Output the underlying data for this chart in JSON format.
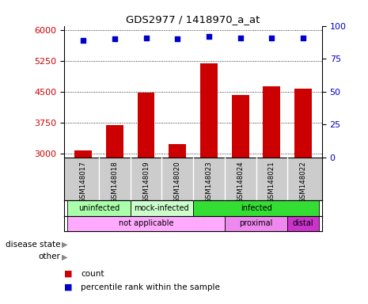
{
  "title": "GDS2977 / 1418970_a_at",
  "samples": [
    "GSM148017",
    "GSM148018",
    "GSM148019",
    "GSM148020",
    "GSM148023",
    "GSM148024",
    "GSM148021",
    "GSM148022"
  ],
  "counts": [
    3080,
    3680,
    4480,
    3220,
    5180,
    4420,
    4640,
    4580
  ],
  "percentile_ranks": [
    89,
    90,
    91,
    90,
    92,
    91,
    91,
    91
  ],
  "ylim_left": [
    2900,
    6100
  ],
  "ylim_right": [
    0,
    100
  ],
  "yticks_left": [
    3000,
    3750,
    4500,
    5250,
    6000
  ],
  "yticks_right": [
    0,
    25,
    50,
    75,
    100
  ],
  "bar_color": "#cc0000",
  "dot_color": "#0000cc",
  "grid_color": "#000000",
  "disease_state_labels": [
    {
      "label": "uninfected",
      "start": 0,
      "end": 2,
      "color": "#aaffaa"
    },
    {
      "label": "mock-infected",
      "start": 2,
      "end": 4,
      "color": "#ccffcc"
    },
    {
      "label": "infected",
      "start": 4,
      "end": 8,
      "color": "#33dd33"
    }
  ],
  "other_labels": [
    {
      "label": "not applicable",
      "start": 0,
      "end": 5,
      "color": "#ffaaff"
    },
    {
      "label": "proximal",
      "start": 5,
      "end": 7,
      "color": "#ee88ee"
    },
    {
      "label": "distal",
      "start": 7,
      "end": 8,
      "color": "#cc33cc"
    }
  ],
  "legend_count_color": "#cc0000",
  "legend_dot_color": "#0000cc",
  "tick_label_color_left": "#cc0000",
  "tick_label_color_right": "#0000cc",
  "bg_color": "#ffffff",
  "sample_bg_color": "#cccccc",
  "bar_width": 0.55
}
